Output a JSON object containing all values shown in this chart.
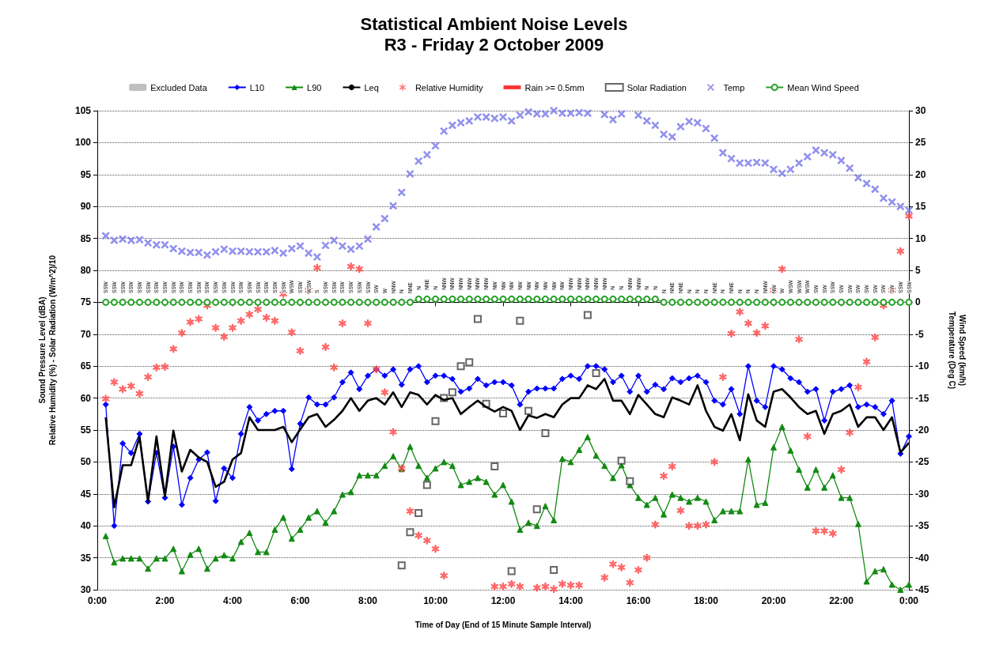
{
  "chart_data": {
    "type": "line",
    "title": "Statistical Ambient Noise Levels",
    "subtitle": "R3 - Friday 2 October 2009",
    "xlabel": "Time of Day (End of 15 Minute Sample Interval)",
    "ylabel": "Sound Pressure Level (dBA)\nRelative Humidity (%) - Solar Radiation (W/m^2)/10",
    "y2label": "Wind Speed (km/h)\nTemperature (Deg C)",
    "x": [
      0.25,
      0.5,
      0.75,
      1,
      1.25,
      1.5,
      1.75,
      2,
      2.25,
      2.5,
      2.75,
      3,
      3.25,
      3.5,
      3.75,
      4,
      4.25,
      4.5,
      4.75,
      5,
      5.25,
      5.5,
      5.75,
      6,
      6.25,
      6.5,
      6.75,
      7,
      7.25,
      7.5,
      7.75,
      8,
      8.25,
      8.5,
      8.75,
      9,
      9.25,
      9.5,
      9.75,
      10,
      10.25,
      10.5,
      10.75,
      11,
      11.25,
      11.5,
      11.75,
      12,
      12.25,
      12.5,
      12.75,
      13,
      13.25,
      13.5,
      13.75,
      14,
      14.25,
      14.5,
      14.75,
      15,
      15.25,
      15.5,
      15.75,
      16,
      16.25,
      16.5,
      16.75,
      17,
      17.25,
      17.5,
      17.75,
      18,
      18.25,
      18.5,
      18.75,
      19,
      19.25,
      19.5,
      19.75,
      20,
      20.25,
      20.5,
      20.75,
      21,
      21.25,
      21.5,
      21.75,
      22,
      22.25,
      22.5,
      22.75,
      23,
      23.25,
      23.5,
      23.75,
      24
    ],
    "xlim": [
      0,
      24
    ],
    "xticks": [
      {
        "value": 0,
        "label": "0:00"
      },
      {
        "value": 2,
        "label": "2:00"
      },
      {
        "value": 4,
        "label": "4:00"
      },
      {
        "value": 6,
        "label": "6:00"
      },
      {
        "value": 8,
        "label": "8:00"
      },
      {
        "value": 10,
        "label": "10:00"
      },
      {
        "value": 12,
        "label": "12:00"
      },
      {
        "value": 14,
        "label": "14:00"
      },
      {
        "value": 16,
        "label": "16:00"
      },
      {
        "value": 18,
        "label": "18:00"
      },
      {
        "value": 20,
        "label": "20:00"
      },
      {
        "value": 22,
        "label": "22:00"
      },
      {
        "value": 24,
        "label": "0:00"
      }
    ],
    "ylim": [
      30,
      105
    ],
    "yticks": [
      30,
      35,
      40,
      45,
      50,
      55,
      60,
      65,
      70,
      75,
      80,
      85,
      90,
      95,
      100,
      105
    ],
    "y2lim": [
      -45,
      30
    ],
    "y2ticks": [
      -45,
      -40,
      -35,
      -30,
      -25,
      -20,
      -15,
      -10,
      -5,
      0,
      5,
      10,
      15,
      20,
      25,
      30
    ],
    "grid": "y",
    "legend": "top",
    "line_style": "solid",
    "series": [
      {
        "name": "Excluded Data",
        "type": "bar",
        "color": "#bfbfbf",
        "values": [
          null,
          null,
          null,
          null,
          null,
          null,
          null,
          null,
          null,
          null,
          null,
          null,
          null,
          null,
          null,
          null,
          null,
          null,
          null,
          null,
          null,
          null,
          null,
          null,
          null,
          null,
          null,
          null,
          null,
          null,
          null,
          null,
          null,
          null,
          null,
          null,
          null,
          null,
          null,
          null,
          null,
          null,
          null,
          null,
          null,
          null,
          null,
          null,
          null,
          null,
          null,
          null,
          null,
          null,
          null,
          null,
          null,
          null,
          null,
          null,
          null,
          null,
          null,
          null,
          null,
          null,
          null,
          null,
          null,
          null,
          null,
          null,
          null,
          null,
          null,
          null,
          null,
          null,
          null,
          null,
          null,
          null,
          null,
          null,
          null,
          null,
          null,
          null,
          null,
          null,
          null,
          null,
          null,
          null,
          null,
          null
        ]
      },
      {
        "name": "L10",
        "marker": "diamond",
        "color": "#0000ff",
        "values": [
          59,
          40,
          52.9,
          51.4,
          54.4,
          43.8,
          51.4,
          44.4,
          52.4,
          43.3,
          47.5,
          50.4,
          51.5,
          43.9,
          49,
          47.5,
          54.4,
          58.6,
          56.5,
          57.5,
          58,
          58,
          48.9,
          56,
          60.1,
          59,
          59,
          60.1,
          62.5,
          64,
          61.4,
          63.5,
          64.5,
          63.5,
          64.5,
          62.1,
          64.5,
          65,
          62.5,
          63.5,
          63.5,
          63,
          61,
          61.5,
          63,
          62,
          62.5,
          62.5,
          62,
          59,
          61,
          61.5,
          61.5,
          61.5,
          63,
          63.5,
          63,
          65,
          65,
          64.5,
          62.5,
          63.5,
          61,
          63.5,
          61,
          62.1,
          61.4,
          63.1,
          62.5,
          63.1,
          63.5,
          62.5,
          59.6,
          59,
          61.4,
          57.5,
          65,
          59.6,
          58.6,
          65,
          64.5,
          63.1,
          62.5,
          61,
          61.4,
          56.5,
          61,
          61.4,
          62,
          58.6,
          59,
          58.6,
          57.5,
          59.6,
          51.3,
          54
        ]
      },
      {
        "name": "L90",
        "marker": "triangle",
        "color": "#138a13",
        "values": [
          38.4,
          34.3,
          34.9,
          34.9,
          34.9,
          33.3,
          34.9,
          34.9,
          36.4,
          32.9,
          35.5,
          36.4,
          33.3,
          34.9,
          35.4,
          34.9,
          37.5,
          38.9,
          35.9,
          35.9,
          39.4,
          41.3,
          38,
          39.4,
          41.3,
          42.3,
          40.5,
          42.3,
          44.9,
          45.3,
          47.9,
          47.9,
          47.9,
          49.4,
          50.9,
          48.9,
          52.4,
          49.4,
          47.5,
          49,
          50,
          49.4,
          46.4,
          46.9,
          47.5,
          46.9,
          44.9,
          46.4,
          43.8,
          39.4,
          40.5,
          40,
          43.1,
          40.9,
          50.5,
          50,
          51.9,
          53.9,
          51,
          49.4,
          47.5,
          49.5,
          46.4,
          44.4,
          43.3,
          44.4,
          41.8,
          44.9,
          44.4,
          43.8,
          44.4,
          43.8,
          40.9,
          42.3,
          42.3,
          42.3,
          50.4,
          43.3,
          43.6,
          52.3,
          55.5,
          51.8,
          48.8,
          46,
          48.8,
          46,
          47.9,
          44.4,
          44.4,
          40.3,
          31.3,
          32.9,
          33.2,
          30.8,
          30,
          30.8
        ]
      },
      {
        "name": "Leq",
        "marker": "none",
        "color": "#000000",
        "values": [
          57,
          42.9,
          49.5,
          49.5,
          53.9,
          43.8,
          54,
          44.6,
          54.9,
          48.5,
          51.9,
          50.7,
          50,
          46.1,
          46.9,
          50.4,
          51.4,
          57,
          55,
          55,
          55,
          55.5,
          53.1,
          55.1,
          57,
          57.5,
          55.5,
          56.6,
          58,
          60,
          58,
          59.6,
          60,
          59,
          60.9,
          58.6,
          60.9,
          60.5,
          59,
          60.5,
          59.7,
          60,
          57.5,
          58.6,
          59.6,
          58.6,
          57.9,
          58.6,
          58,
          55,
          57.3,
          56.9,
          57.5,
          57,
          59,
          60,
          60,
          62,
          61.4,
          63,
          59.6,
          59.6,
          57.5,
          60.5,
          59,
          57.5,
          57,
          60.1,
          59.6,
          59,
          62,
          58,
          55.5,
          54.9,
          57.5,
          53.4,
          60.6,
          56.5,
          55.5,
          61,
          61.4,
          60.1,
          58.6,
          57.5,
          58,
          54.4,
          57.5,
          58,
          59,
          55.5,
          57,
          57,
          55,
          57,
          51.5,
          53
        ]
      },
      {
        "name": "Relative Humidity",
        "type": "scatter",
        "marker": "star",
        "color": "#ff4d4d",
        "values": [
          59.9,
          62.5,
          61.4,
          61.9,
          60.7,
          63.3,
          64.8,
          64.9,
          67.7,
          70.2,
          71.9,
          72.4,
          74.5,
          71,
          69.6,
          71,
          72.1,
          73.1,
          73.9,
          72.6,
          72.1,
          76.3,
          70.3,
          67.4,
          76.9,
          80.4,
          68,
          64.8,
          71.7,
          80.6,
          80.2,
          71.7,
          64.5,
          60.9,
          54.7,
          49,
          42.3,
          38.5,
          37.7,
          36.4,
          32.2,
          null,
          null,
          null,
          null,
          null,
          30.5,
          30.5,
          30.9,
          30.5,
          null,
          30.3,
          30.5,
          30.1,
          30.9,
          30.7,
          30.7,
          null,
          null,
          31.9,
          34,
          33.5,
          31.1,
          33.1,
          35,
          40.2,
          47.8,
          49.3,
          42.4,
          40,
          40,
          40.2,
          50,
          63.3,
          70.1,
          73.5,
          71.7,
          70.2,
          71.3,
          76.9,
          80.2,
          null,
          69.2,
          54,
          39.2,
          39.2,
          38.8,
          48.8,
          54.6,
          61.7,
          65.7,
          69.5,
          74.5,
          76.9,
          83,
          88.5
        ]
      },
      {
        "name": "Rain >= 0.5mm",
        "type": "scatter",
        "color": "#ff0000",
        "values": [
          null,
          null,
          null,
          null,
          null,
          null,
          null,
          null,
          null,
          null,
          null,
          null,
          null,
          null,
          null,
          null,
          null,
          null,
          null,
          null,
          null,
          null,
          null,
          null,
          null,
          null,
          null,
          null,
          null,
          null,
          null,
          null,
          null,
          null,
          null,
          null,
          null,
          null,
          null,
          null,
          null,
          null,
          null,
          null,
          null,
          null,
          null,
          null,
          null,
          null,
          null,
          null,
          null,
          null,
          null,
          null,
          null,
          null,
          null,
          null,
          null,
          null,
          null,
          null,
          null,
          null,
          null,
          null,
          null,
          null,
          null,
          null,
          null,
          null,
          null,
          null,
          null,
          null,
          null,
          null,
          null,
          null,
          null,
          null,
          null,
          null,
          null,
          null,
          null,
          null,
          null,
          null,
          null,
          null,
          null,
          null
        ]
      },
      {
        "name": "Solar Radiation",
        "type": "scatter",
        "marker": "square",
        "color": "#404040",
        "x": [
          9,
          9.25,
          9.5,
          9.75,
          10,
          10.25,
          10.5,
          10.75,
          11,
          11.25,
          11.5,
          11.75,
          12,
          12.25,
          12.5,
          12.75,
          13,
          13.25,
          13.5,
          14.5,
          14.75,
          15.5,
          15.75
        ],
        "values": [
          33.8,
          39,
          42,
          46.4,
          56.4,
          60,
          60.9,
          65,
          65.6,
          72.4,
          59.1,
          49.3,
          57.6,
          32.9,
          72.1,
          58,
          42.6,
          54.5,
          33.1,
          73,
          63.9,
          50.2,
          47
        ]
      },
      {
        "name": "Temp",
        "type": "scatter",
        "marker": "cross",
        "axis": "y2",
        "color": "#7b7bea",
        "values": [
          10.4,
          9.7,
          9.9,
          9.7,
          9.8,
          9.3,
          9,
          9,
          8.4,
          8,
          7.8,
          7.8,
          7.4,
          7.9,
          8.3,
          8,
          8,
          7.9,
          7.9,
          7.9,
          8.1,
          7.7,
          8.4,
          8.8,
          7.7,
          7.1,
          8.9,
          9.7,
          8.8,
          8.3,
          8.8,
          9.9,
          11.8,
          13.1,
          15.1,
          17.2,
          20.1,
          22.1,
          23.1,
          24.5,
          26.8,
          27.7,
          28.1,
          28.4,
          29,
          29,
          28.8,
          29,
          28.4,
          29.3,
          29.8,
          29.5,
          29.5,
          30,
          29.6,
          29.6,
          29.7,
          29.6,
          null,
          29.4,
          28.6,
          29.5,
          null,
          29.3,
          28.4,
          27.7,
          26.3,
          25.9,
          27.5,
          28.3,
          28.1,
          27.2,
          25.7,
          23.4,
          22.5,
          21.8,
          21.8,
          21.9,
          21.8,
          20.8,
          20.2,
          20.8,
          21.8,
          22.8,
          23.8,
          23.4,
          23.1,
          22.2,
          21,
          19.5,
          18.6,
          17.7,
          16.3,
          15.7,
          15,
          14.4
        ]
      },
      {
        "name": "Mean Wind Speed",
        "marker": "circle",
        "axis": "y2",
        "color": "#2ca02c",
        "values": [
          0,
          0,
          0,
          0,
          0,
          0,
          0,
          0,
          0,
          0,
          0,
          0,
          0,
          0,
          0,
          0,
          0,
          0,
          0,
          0,
          0,
          0,
          0,
          0,
          0,
          0,
          0,
          0,
          0,
          0,
          0,
          0,
          0,
          0,
          0,
          0,
          0,
          0.5,
          0.5,
          0.5,
          0.5,
          0.5,
          0.5,
          0.5,
          0.5,
          0.5,
          0.5,
          0.5,
          0.5,
          0.5,
          0.5,
          0.5,
          0.5,
          0.5,
          0.5,
          0.5,
          0.5,
          0.5,
          0.5,
          0.5,
          0.5,
          0.5,
          0.5,
          0.5,
          0.5,
          0.5,
          0,
          0,
          0,
          0,
          0,
          0,
          0,
          0,
          0,
          0,
          0,
          0,
          0,
          0,
          0,
          0,
          0,
          0,
          0,
          0,
          0,
          0,
          0,
          0,
          0,
          0,
          0,
          0,
          0,
          0
        ],
        "value_labels": [
          "SSW",
          "SSW",
          "SSW",
          "SSW",
          "SSW",
          "SSW",
          "SSW",
          "SSW",
          "SSW",
          "SSW",
          "SSW",
          "SSW",
          "SSW",
          "SSW",
          "SSW",
          "SSW",
          "SSW",
          "SSW",
          "SSW",
          "SSW",
          "SSW",
          "SSW",
          "WSW",
          "SSW",
          "WSW",
          "S",
          "SSW",
          "SSW",
          "SSW",
          "SSW",
          "SSW",
          "SSW",
          "SW",
          "W",
          "NNW",
          "N",
          "NNE",
          "N",
          "NNE",
          "N",
          "NNW",
          "NNW",
          "NNW",
          "NNW",
          "NNW",
          "NNW",
          "NW",
          "NW",
          "NW",
          "NW",
          "NW",
          "NW",
          "NW",
          "NW",
          "NW",
          "NNW",
          "NNW",
          "NNW",
          "NNW",
          "NNW",
          "N",
          "N",
          "NNW",
          "NNW",
          "N",
          "N",
          "N",
          "NNE",
          "NNE",
          "N",
          "N",
          "N",
          "NNE",
          "N",
          "NNE",
          "N",
          "N",
          "N",
          "NNW",
          "NW",
          "W",
          "WSW",
          "WSW",
          "WSW",
          "SW",
          "SW",
          "SSW",
          "SW",
          "SW",
          "SW",
          "SW",
          "SW",
          "SW",
          "SW",
          "SSW",
          "SSW"
        ]
      }
    ]
  }
}
